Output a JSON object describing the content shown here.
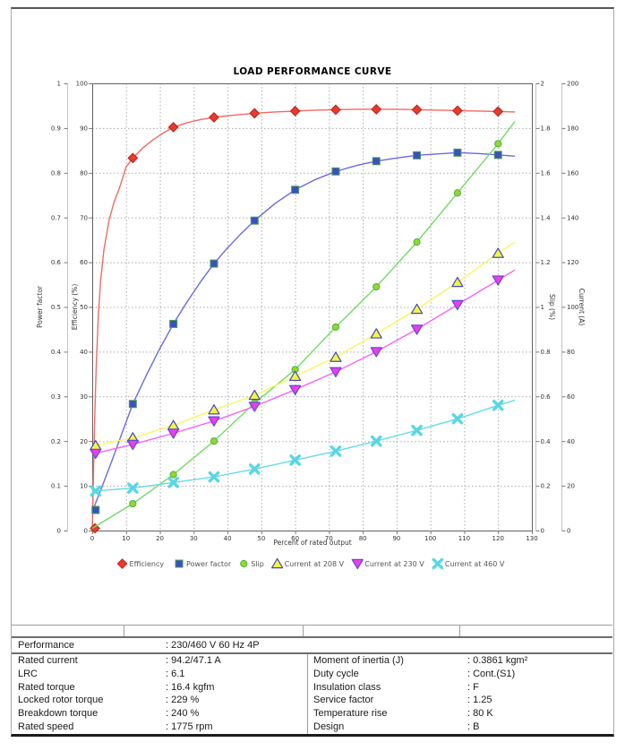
{
  "chart_data": {
    "type": "line",
    "title": "LOAD PERFORMANCE CURVE",
    "xlabel": "Percent of rated output",
    "x_range": [
      0,
      130
    ],
    "x_tick_step": 10,
    "grid": "dotted",
    "legend_position": "bottom",
    "axes": [
      {
        "id": "pf",
        "label": "Power factor",
        "range": [
          0,
          1
        ],
        "tick_step": 0.1,
        "side": "left"
      },
      {
        "id": "eff",
        "label": "Efficiency (%)",
        "range": [
          0,
          100
        ],
        "tick_step": 10,
        "side": "left"
      },
      {
        "id": "slip",
        "label": "Slip (%)",
        "range": [
          0,
          2
        ],
        "tick_step": 0.2,
        "side": "right"
      },
      {
        "id": "cur",
        "label": "Current (A)",
        "range": [
          0,
          200
        ],
        "tick_step": 20,
        "side": "right"
      }
    ],
    "series": [
      {
        "name": "Efficiency",
        "axis": "eff",
        "marker": "diamond",
        "color": "#f26a63",
        "marker_fill": "#e93a30",
        "marker_stroke": "#bb2018",
        "points": [
          [
            0.8,
            0.5
          ],
          [
            12,
            83.3
          ],
          [
            24,
            90.2
          ],
          [
            36,
            92.4
          ],
          [
            48,
            93.3
          ],
          [
            60,
            93.8
          ],
          [
            72,
            94.1
          ],
          [
            84,
            94.2
          ],
          [
            96,
            94.1
          ],
          [
            108,
            93.9
          ],
          [
            120,
            93.7
          ]
        ],
        "line": [
          [
            0,
            0
          ],
          [
            0.4,
            14
          ],
          [
            0.8,
            27
          ],
          [
            1.2,
            37
          ],
          [
            1.8,
            48
          ],
          [
            2.5,
            56
          ],
          [
            3.5,
            63
          ],
          [
            5,
            69.5
          ],
          [
            6.5,
            73.5
          ],
          [
            8,
            76.5
          ],
          [
            10,
            81.3
          ],
          [
            12,
            83.3
          ],
          [
            15,
            85.6
          ],
          [
            18,
            87.4
          ],
          [
            21,
            88.9
          ],
          [
            24,
            90.2
          ],
          [
            28,
            91.2
          ],
          [
            32,
            91.9
          ],
          [
            36,
            92.4
          ],
          [
            42,
            92.9
          ],
          [
            48,
            93.3
          ],
          [
            54,
            93.6
          ],
          [
            60,
            93.8
          ],
          [
            66,
            94.0
          ],
          [
            72,
            94.1
          ],
          [
            78,
            94.2
          ],
          [
            84,
            94.2
          ],
          [
            90,
            94.2
          ],
          [
            96,
            94.1
          ],
          [
            102,
            94.0
          ],
          [
            108,
            93.9
          ],
          [
            114,
            93.8
          ],
          [
            120,
            93.7
          ],
          [
            125,
            93.6
          ]
        ]
      },
      {
        "name": "Power factor",
        "axis": "pf",
        "marker": "square",
        "color": "#6a6ae0",
        "marker_fill": "#3a4fc6",
        "marker_stroke": "#4aa04a",
        "points": [
          [
            1,
            0.046
          ],
          [
            12,
            0.283
          ],
          [
            24,
            0.462
          ],
          [
            36,
            0.597
          ],
          [
            48,
            0.693
          ],
          [
            60,
            0.762
          ],
          [
            72,
            0.803
          ],
          [
            84,
            0.826
          ],
          [
            96,
            0.839
          ],
          [
            108,
            0.845
          ],
          [
            120,
            0.84
          ]
        ],
        "line": [
          [
            0,
            0.042
          ],
          [
            3,
            0.1
          ],
          [
            6,
            0.16
          ],
          [
            9,
            0.222
          ],
          [
            12,
            0.283
          ],
          [
            16,
            0.347
          ],
          [
            20,
            0.407
          ],
          [
            24,
            0.462
          ],
          [
            28,
            0.511
          ],
          [
            32,
            0.556
          ],
          [
            36,
            0.597
          ],
          [
            40,
            0.632
          ],
          [
            44,
            0.664
          ],
          [
            48,
            0.693
          ],
          [
            54,
            0.731
          ],
          [
            60,
            0.762
          ],
          [
            66,
            0.785
          ],
          [
            72,
            0.803
          ],
          [
            78,
            0.816
          ],
          [
            84,
            0.826
          ],
          [
            90,
            0.833
          ],
          [
            96,
            0.839
          ],
          [
            102,
            0.842
          ],
          [
            108,
            0.845
          ],
          [
            114,
            0.843
          ],
          [
            120,
            0.84
          ],
          [
            125,
            0.837
          ]
        ]
      },
      {
        "name": "Slip",
        "axis": "slip",
        "marker": "circle",
        "color": "#6fdc64",
        "marker_fill": "#9ad42f",
        "marker_stroke": "#42b542",
        "points": [
          [
            12,
            0.12
          ],
          [
            24,
            0.25
          ],
          [
            36,
            0.4
          ],
          [
            48,
            0.57
          ],
          [
            60,
            0.72
          ],
          [
            72,
            0.91
          ],
          [
            84,
            1.09
          ],
          [
            96,
            1.29
          ],
          [
            108,
            1.51
          ],
          [
            120,
            1.73
          ]
        ],
        "line": [
          [
            0,
            0.01
          ],
          [
            12,
            0.12
          ],
          [
            24,
            0.25
          ],
          [
            36,
            0.4
          ],
          [
            48,
            0.57
          ],
          [
            60,
            0.72
          ],
          [
            72,
            0.91
          ],
          [
            84,
            1.09
          ],
          [
            96,
            1.29
          ],
          [
            108,
            1.51
          ],
          [
            120,
            1.73
          ],
          [
            125,
            1.83
          ]
        ]
      },
      {
        "name": "Current at 208 V",
        "axis": "cur",
        "marker": "triangle-up",
        "color": "#f7f75e",
        "marker_fill": "#f6f63e",
        "marker_stroke": "#4646c8",
        "points": [
          [
            1,
            38
          ],
          [
            12,
            41.5
          ],
          [
            24,
            47
          ],
          [
            36,
            54
          ],
          [
            48,
            60.5
          ],
          [
            60,
            69
          ],
          [
            72,
            77.5
          ],
          [
            84,
            88
          ],
          [
            96,
            99
          ],
          [
            108,
            111
          ],
          [
            120,
            124
          ]
        ],
        "line": [
          [
            0,
            37.8
          ],
          [
            12,
            41.5
          ],
          [
            24,
            47
          ],
          [
            36,
            54
          ],
          [
            48,
            60.5
          ],
          [
            60,
            69
          ],
          [
            72,
            77.5
          ],
          [
            84,
            88
          ],
          [
            96,
            99
          ],
          [
            108,
            111
          ],
          [
            120,
            124
          ],
          [
            125,
            129
          ]
        ]
      },
      {
        "name": "Current at 230 V",
        "axis": "cur",
        "marker": "triangle-down",
        "color": "#f763f7",
        "marker_fill": "#ee3cee",
        "marker_stroke": "#5d4bcf",
        "points": [
          [
            1,
            34.5
          ],
          [
            12,
            38.5
          ],
          [
            24,
            43.5
          ],
          [
            36,
            49
          ],
          [
            48,
            55.5
          ],
          [
            60,
            63
          ],
          [
            72,
            71
          ],
          [
            84,
            80
          ],
          [
            96,
            90
          ],
          [
            108,
            101
          ],
          [
            120,
            112
          ]
        ],
        "line": [
          [
            0,
            34.2
          ],
          [
            12,
            38.5
          ],
          [
            24,
            43.5
          ],
          [
            36,
            49
          ],
          [
            48,
            55.5
          ],
          [
            60,
            63
          ],
          [
            72,
            71
          ],
          [
            84,
            80
          ],
          [
            96,
            90
          ],
          [
            108,
            101
          ],
          [
            120,
            112
          ],
          [
            125,
            116.5
          ]
        ]
      },
      {
        "name": "Current at 460 V",
        "axis": "cur",
        "marker": "xmark",
        "color": "#67dbe3",
        "marker_fill": "#58d7e3",
        "marker_stroke": "#58d7e3",
        "points": [
          [
            1,
            17.7
          ],
          [
            12,
            19
          ],
          [
            24,
            21.5
          ],
          [
            36,
            24
          ],
          [
            48,
            27.5
          ],
          [
            60,
            31.5
          ],
          [
            72,
            35.5
          ],
          [
            84,
            40
          ],
          [
            96,
            44.8
          ],
          [
            108,
            50
          ],
          [
            120,
            56
          ]
        ],
        "line": [
          [
            0,
            17.6
          ],
          [
            12,
            19
          ],
          [
            24,
            21.5
          ],
          [
            36,
            24
          ],
          [
            48,
            27.5
          ],
          [
            60,
            31.5
          ],
          [
            72,
            35.5
          ],
          [
            84,
            40
          ],
          [
            96,
            44.8
          ],
          [
            108,
            50
          ],
          [
            120,
            56
          ],
          [
            125,
            58.3
          ]
        ]
      }
    ],
    "legend": [
      "Efficiency",
      "Power factor",
      "Slip",
      "Current at 208 V",
      "Current at 230 V",
      "Current at 460 V"
    ]
  },
  "table": {
    "performance_label": "Performance",
    "performance_value": ": 230/460 V 60 Hz 4P",
    "left_rows": [
      {
        "label": "Rated current",
        "value": ": 94.2/47.1 A"
      },
      {
        "label": "LRC",
        "value": ": 6.1"
      },
      {
        "label": "Rated torque",
        "value": ": 16.4 kgfm"
      },
      {
        "label": "Locked rotor torque",
        "value": ": 229 %"
      },
      {
        "label": "Breakdown torque",
        "value": ": 240 %"
      },
      {
        "label": "Rated speed",
        "value": ": 1775 rpm"
      }
    ],
    "right_rows": [
      {
        "label": "Moment of inertia (J)",
        "value": ": 0.3861 kgm²"
      },
      {
        "label": "Duty cycle",
        "value": ": Cont.(S1)"
      },
      {
        "label": "Insulation class",
        "value": ": F"
      },
      {
        "label": "Service factor",
        "value": ": 1.25"
      },
      {
        "label": "Temperature rise",
        "value": ": 80 K"
      },
      {
        "label": "Design",
        "value": ": B"
      }
    ]
  }
}
